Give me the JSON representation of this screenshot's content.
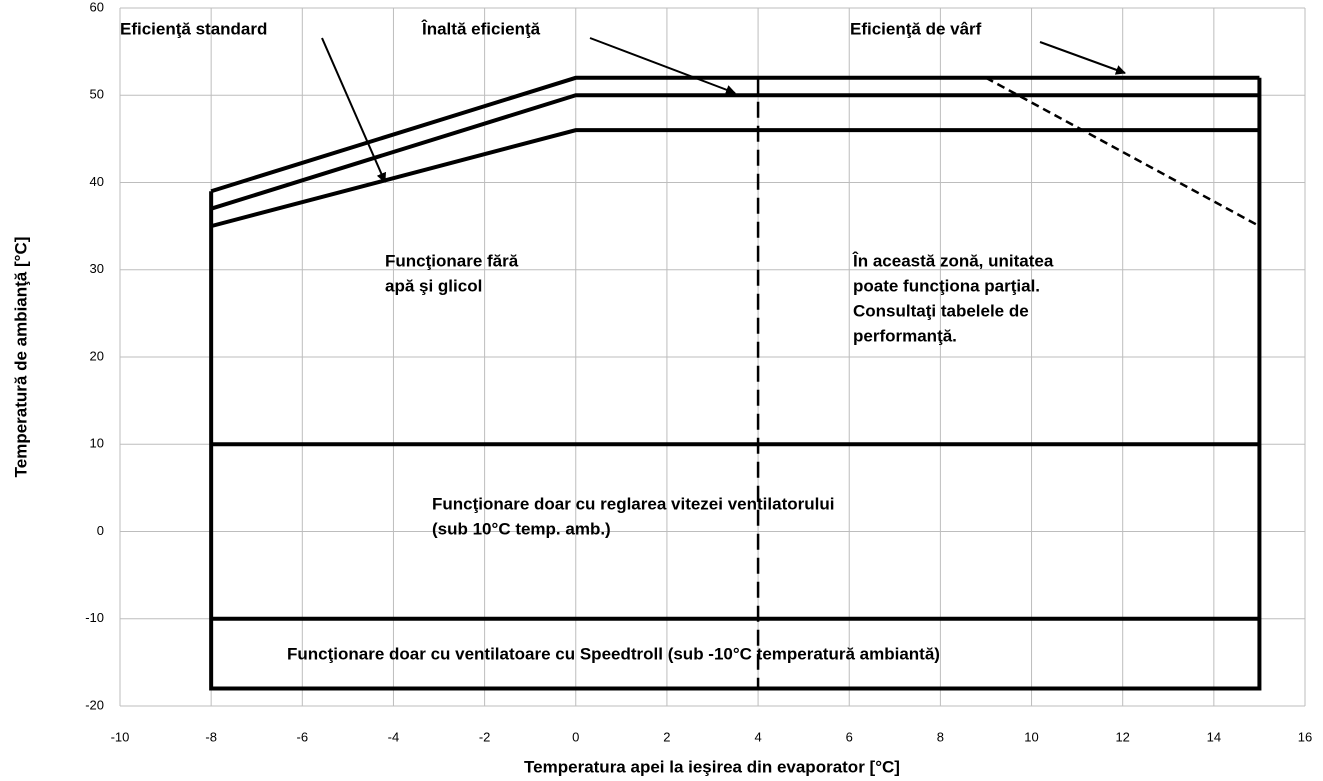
{
  "chart_data": {
    "type": "line",
    "xlabel": "Temperatura apei la ieşirea din evaporator [°C]",
    "ylabel": "Temperatură de ambianţă  [°C]",
    "xlim": [
      -10,
      16
    ],
    "xticks": [
      -10,
      -8,
      -6,
      -4,
      -2,
      0,
      2,
      4,
      6,
      8,
      10,
      12,
      14,
      16
    ],
    "ylim": [
      -20,
      60
    ],
    "yticks": [
      -20,
      -10,
      0,
      10,
      20,
      30,
      40,
      50,
      60
    ],
    "grid": true,
    "series": [
      {
        "color": "#000000",
        "style": "solid",
        "x": [
          -8,
          0,
          15
        ],
        "values": [
          35,
          46,
          46
        ]
      },
      {
        "color": "#000000",
        "style": "solid",
        "x": [
          -8,
          0,
          15
        ],
        "values": [
          37,
          50,
          50
        ]
      },
      {
        "color": "#000000",
        "style": "solid",
        "x": [
          -8,
          0,
          15
        ],
        "values": [
          39,
          52,
          52
        ]
      },
      {
        "color": "#000000",
        "style": "solid",
        "x": [
          -8,
          -8,
          15,
          15
        ],
        "values": [
          39,
          -18,
          -18,
          52
        ]
      },
      {
        "color": "#000000",
        "style": "solid",
        "x": [
          -8,
          15
        ],
        "values": [
          10,
          10
        ]
      },
      {
        "color": "#000000",
        "style": "solid",
        "x": [
          -8,
          15
        ],
        "values": [
          -10,
          -10
        ]
      },
      {
        "color": "#000000",
        "style": "long-dashed",
        "x": [
          4,
          4
        ],
        "values": [
          52,
          -18
        ]
      },
      {
        "color": "#000000",
        "style": "dashed",
        "x": [
          9,
          15
        ],
        "values": [
          52,
          35
        ]
      }
    ],
    "annotations": [
      [
        "Eficienţă standard"
      ],
      [
        "Înaltă eficienţă"
      ],
      [
        "Eficienţă de vârf"
      ],
      [
        "Funcţionare fără",
        "apă şi glicol"
      ],
      [
        "În această zonă, unitatea",
        "poate funcţiona parţial.",
        "Consultaţi tabelele de",
        "performanţă."
      ],
      [
        "Funcţionare doar cu reglarea vitezei ventilatorului",
        "(sub 10°C temp. amb.)"
      ],
      [
        "Funcţionare doar cu ventilatoare cu Speedtroll (sub -10°C temperatură ambiantă)"
      ]
    ]
  }
}
